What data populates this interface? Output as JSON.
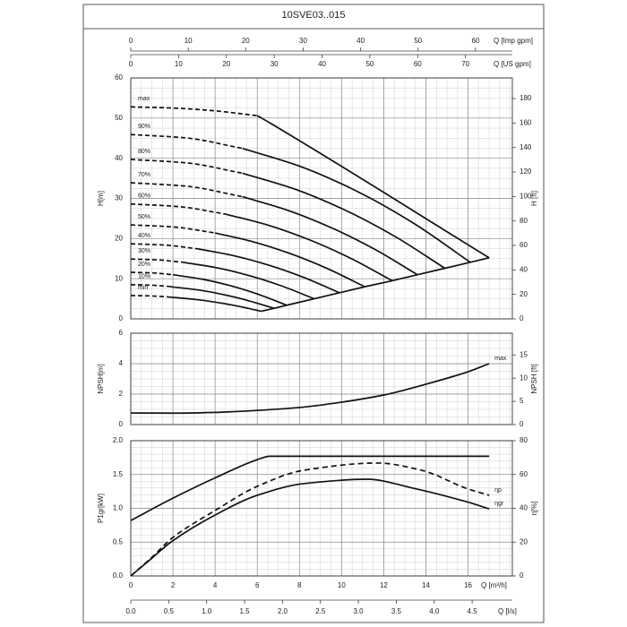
{
  "title": "10SVE03..015",
  "secondary_x_axes": [
    {
      "label": "Q [Imp gpm]",
      "xlim": [
        0,
        66.4
      ],
      "xticks": [
        0,
        10,
        20,
        30,
        40,
        50,
        60
      ]
    },
    {
      "label": "Q [US gpm]",
      "xlim": [
        0,
        79.8
      ],
      "xticks": [
        0,
        10,
        20,
        30,
        40,
        50,
        60,
        70
      ]
    },
    {
      "label": "Q [l/s]",
      "xlim": [
        0,
        5.03
      ],
      "xticks": [
        {
          "value": 0,
          "label": "0.0"
        },
        0.5,
        {
          "value": 1,
          "label": "1.0"
        },
        1.5,
        {
          "value": 2,
          "label": "2.0"
        },
        2.5,
        {
          "value": 3,
          "label": "3.0"
        },
        3.5,
        {
          "value": 4,
          "label": "4.0"
        },
        4.5
      ]
    }
  ],
  "chart_data": [
    {
      "type": "line",
      "ylabel": "H[m]",
      "y2label": "H [ft]",
      "xlim": [
        0,
        18.1
      ],
      "xticks": [
        0,
        2,
        4,
        6,
        8,
        10,
        12,
        14,
        16
      ],
      "ylim": [
        0,
        60
      ],
      "yticks": [
        0,
        10,
        20,
        30,
        40,
        50,
        60
      ],
      "y2lim": [
        0,
        196.85
      ],
      "y2ticks": [
        0,
        20,
        40,
        60,
        80,
        100,
        120,
        140,
        160,
        180
      ],
      "grid": true,
      "minor_divisions": [
        4,
        4
      ],
      "color": "#111111",
      "label_position": "start",
      "series": [
        {
          "name": "max",
          "dashed_x": [
            0,
            2,
            4,
            6
          ],
          "dashed_values": [
            52.8,
            52.5,
            51.8,
            50.6
          ],
          "x": [
            6,
            6.6,
            17
          ],
          "values": [
            50.6,
            48.8,
            15.2
          ]
        },
        {
          "name": "90%",
          "dashed_x": [
            0,
            2.6,
            5.3
          ],
          "dashed_values": [
            45.9,
            45.07,
            42.45
          ],
          "x": [
            5.3,
            8,
            10.7,
            13.4,
            16.1
          ],
          "values": [
            42.45,
            38.05,
            31.85,
            23.87,
            14.1
          ]
        },
        {
          "name": "80%",
          "dashed_x": [
            0,
            2.65,
            5.3
          ],
          "dashed_values": [
            39.7,
            38.84,
            36.27
          ],
          "x": [
            5.3,
            7.7,
            10.1,
            12.5,
            14.9
          ],
          "values": [
            36.27,
            32.46,
            27.24,
            20.62,
            12.6
          ]
        },
        {
          "name": "70%",
          "dashed_x": [
            0,
            2.65,
            5.3
          ],
          "dashed_values": [
            33.9,
            33.03,
            30.42
          ],
          "x": [
            5.3,
            7.4,
            9.5,
            11.5,
            13.6
          ],
          "values": [
            30.42,
            27.12,
            22.73,
            17.53,
            11.0
          ]
        },
        {
          "name": "60%",
          "dashed_x": [
            0,
            2.25,
            4.5
          ],
          "dashed_values": [
            28.6,
            27.97,
            26.09
          ],
          "x": [
            4.5,
            6.5,
            8.5,
            10.4,
            12.4
          ],
          "values": [
            26.09,
            23.35,
            19.63,
            15.17,
            9.5
          ]
        },
        {
          "name": "50%",
          "dashed_x": [
            0,
            2,
            4
          ],
          "dashed_values": [
            23.4,
            22.9,
            21.4
          ],
          "x": [
            4,
            5.8,
            7.5,
            9.3,
            11.1
          ],
          "values": [
            21.4,
            19.2,
            16.37,
            12.59,
            8.0
          ]
        },
        {
          "name": "40%",
          "dashed_x": [
            0,
            1.6,
            3.2
          ],
          "dashed_values": [
            18.7,
            18.38,
            17.43
          ],
          "x": [
            3.2,
            4.9,
            6.6,
            8.2,
            9.9
          ],
          "values": [
            17.43,
            15.71,
            13.28,
            10.33,
            6.5
          ]
        },
        {
          "name": "30%",
          "dashed_x": [
            0,
            1.2,
            2.4
          ],
          "dashed_values": [
            14.9,
            14.71,
            14.15
          ],
          "x": [
            2.4,
            4,
            5.5,
            7.1,
            8.7
          ],
          "values": [
            14.15,
            12.81,
            10.94,
            8.31,
            5.0
          ]
        },
        {
          "name": "20%",
          "dashed_x": [
            0,
            1,
            2
          ],
          "dashed_values": [
            11.6,
            11.45,
            11.0
          ],
          "x": [
            2,
            3.4,
            4.7,
            6,
            7.4
          ],
          "values": [
            11.0,
            9.87,
            8.29,
            6.21,
            3.4
          ]
        },
        {
          "name": "10%",
          "dashed_x": [
            0,
            0.85,
            1.7
          ],
          "dashed_values": [
            8.5,
            8.41,
            8.13
          ],
          "x": [
            1.7,
            3.4,
            5.1,
            6.8
          ],
          "values": [
            8.13,
            7.04,
            5.2,
            2.64
          ]
        },
        {
          "name": "min",
          "dashed_x": [
            0,
            0.85,
            1.7
          ],
          "dashed_values": [
            5.8,
            5.73,
            5.51
          ],
          "x": [
            1.7,
            3.2,
            4.7,
            6.2
          ],
          "values": [
            5.51,
            4.76,
            3.56,
            1.9
          ]
        }
      ]
    },
    {
      "type": "line",
      "ylabel": "NPSH[m]",
      "y2label": "NPSH [ft]",
      "xlim": [
        0,
        18.1
      ],
      "xticks": [
        0,
        2,
        4,
        6,
        8,
        10,
        12,
        14,
        16
      ],
      "ylim": [
        0,
        6
      ],
      "yticks": [
        0,
        2,
        4,
        6
      ],
      "y2lim": [
        0,
        19.685
      ],
      "y2ticks": [
        0,
        5,
        10,
        15
      ],
      "grid": true,
      "minor_divisions": [
        4,
        4
      ],
      "color": "#111111",
      "label_position": "end",
      "series": [
        {
          "name": "max",
          "x": [
            0,
            2,
            4,
            6,
            8,
            10,
            12,
            14,
            16,
            17
          ],
          "values": [
            0.76,
            0.75,
            0.8,
            0.93,
            1.12,
            1.47,
            1.94,
            2.65,
            3.47,
            4.0
          ]
        }
      ]
    },
    {
      "type": "line",
      "ylabel": "P1gr[kW]",
      "y2label": "η[%]",
      "xlabel": "Q [m³/h]",
      "xlim": [
        0,
        18.1
      ],
      "xticks": [
        0,
        2,
        4,
        6,
        8,
        10,
        12,
        14,
        16
      ],
      "ylim": [
        0,
        2
      ],
      "yticks": [
        {
          "value": 0,
          "label": "0.0"
        },
        0.5,
        {
          "value": 1,
          "label": "1.0"
        },
        1.5,
        {
          "value": 2,
          "label": "2.0"
        }
      ],
      "y2lim": [
        0,
        80
      ],
      "y2ticks": [
        0,
        20,
        40,
        60,
        80
      ],
      "grid": true,
      "minor_divisions": [
        4,
        5
      ],
      "color": "#111111",
      "label_position": "end",
      "series": [
        {
          "x": [
            0,
            2,
            4,
            6,
            6.6,
            17
          ],
          "values": [
            0.82,
            1.15,
            1.45,
            1.72,
            1.77,
            1.77
          ]
        },
        {
          "name": "ηp",
          "axis": "y2",
          "dashed": true,
          "x": [
            0,
            1,
            2,
            4,
            6,
            8.2,
            11.7,
            13.8,
            15.9,
            17
          ],
          "values": [
            0,
            11,
            22.8,
            38.7,
            53,
            62.5,
            66.8,
            62.5,
            51.9,
            47.7
          ]
        },
        {
          "name": "ηgr",
          "axis": "y2",
          "x": [
            0,
            1,
            1.9,
            4,
            6,
            8.2,
            11.2,
            13.4,
            15.9,
            17
          ],
          "values": [
            0,
            10.5,
            20,
            36,
            47.7,
            54.6,
            57.2,
            51.9,
            44,
            39.7
          ]
        }
      ]
    }
  ]
}
